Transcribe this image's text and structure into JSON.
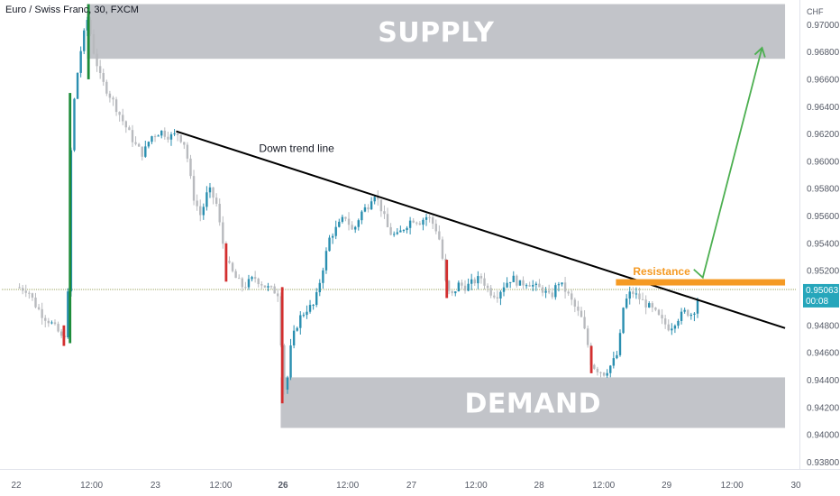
{
  "header": {
    "title": "Euro / Swiss Franc, 30, FXCM"
  },
  "axis": {
    "unit": "CHF"
  },
  "chart_data": {
    "type": "candlestick",
    "symbol": "Euro / Swiss Franc",
    "interval": "30",
    "source": "FXCM",
    "ylim": [
      0.9375,
      0.9718
    ],
    "xlim": [
      0,
      100
    ],
    "y_ticks": [
      "0.97000",
      "0.96800",
      "0.96600",
      "0.96400",
      "0.96200",
      "0.96000",
      "0.95800",
      "0.95600",
      "0.95400",
      "0.95200",
      "0.94800",
      "0.94600",
      "0.94400",
      "0.94200",
      "0.94000",
      "0.93800"
    ],
    "y_tick_values": [
      0.97,
      0.968,
      0.966,
      0.964,
      0.962,
      0.96,
      0.958,
      0.956,
      0.954,
      0.952,
      0.948,
      0.946,
      0.944,
      0.942,
      0.94,
      0.938
    ],
    "x_ticks": [
      {
        "label": "22",
        "pos": 0,
        "bold": false
      },
      {
        "label": "12:00",
        "pos": 9.8,
        "bold": false
      },
      {
        "label": "23",
        "pos": 18.1,
        "bold": false
      },
      {
        "label": "12:00",
        "pos": 26.6,
        "bold": false
      },
      {
        "label": "26",
        "pos": 34.7,
        "bold": true
      },
      {
        "label": "12:00",
        "pos": 43.1,
        "bold": false
      },
      {
        "label": "27",
        "pos": 51.4,
        "bold": false
      },
      {
        "label": "12:00",
        "pos": 59.8,
        "bold": false
      },
      {
        "label": "28",
        "pos": 68.0,
        "bold": false
      },
      {
        "label": "12:00",
        "pos": 76.4,
        "bold": false
      },
      {
        "label": "29",
        "pos": 84.6,
        "bold": false
      },
      {
        "label": "12:00",
        "pos": 93.1,
        "bold": false
      },
      {
        "label": "30",
        "pos": 101.4,
        "bold": false
      }
    ],
    "last_price": "0.95063",
    "countdown": "00:08",
    "last_price_value": 0.95063,
    "price_path": [
      [
        0,
        0.9508
      ],
      [
        1.5,
        0.9506
      ],
      [
        2.5,
        0.9495
      ],
      [
        3.5,
        0.9487
      ],
      [
        4.5,
        0.9482
      ],
      [
        5.5,
        0.9475
      ],
      [
        6.2,
        0.9467
      ],
      [
        6.8,
        0.9508
      ],
      [
        7.2,
        0.9625
      ],
      [
        7.8,
        0.9658
      ],
      [
        8.5,
        0.9685
      ],
      [
        9.3,
        0.9705
      ],
      [
        10.0,
        0.9682
      ],
      [
        11.0,
        0.966
      ],
      [
        12.5,
        0.9645
      ],
      [
        14.0,
        0.9628
      ],
      [
        15.5,
        0.9612
      ],
      [
        16.5,
        0.9605
      ],
      [
        17.5,
        0.9618
      ],
      [
        18.8,
        0.9622
      ],
      [
        20.0,
        0.9618
      ],
      [
        21.0,
        0.962
      ],
      [
        22.0,
        0.9612
      ],
      [
        23.0,
        0.9575
      ],
      [
        24.0,
        0.956
      ],
      [
        25.0,
        0.958
      ],
      [
        26.0,
        0.957
      ],
      [
        26.8,
        0.9542
      ],
      [
        27.5,
        0.9525
      ],
      [
        28.5,
        0.9515
      ],
      [
        29.5,
        0.9508
      ],
      [
        31.0,
        0.9515
      ],
      [
        32.5,
        0.9508
      ],
      [
        33.6,
        0.9505
      ],
      [
        34.2,
        0.9503
      ],
      [
        34.6,
        0.9445
      ],
      [
        35.0,
        0.9428
      ],
      [
        35.8,
        0.9468
      ],
      [
        36.8,
        0.9485
      ],
      [
        37.8,
        0.9492
      ],
      [
        38.8,
        0.9495
      ],
      [
        39.8,
        0.952
      ],
      [
        40.8,
        0.9545
      ],
      [
        41.8,
        0.9552
      ],
      [
        42.8,
        0.956
      ],
      [
        43.8,
        0.9548
      ],
      [
        44.8,
        0.9562
      ],
      [
        45.8,
        0.9568
      ],
      [
        46.5,
        0.9578
      ],
      [
        47.5,
        0.9565
      ],
      [
        48.5,
        0.9548
      ],
      [
        49.5,
        0.9545
      ],
      [
        50.5,
        0.9552
      ],
      [
        51.5,
        0.9558
      ],
      [
        52.5,
        0.9556
      ],
      [
        53.5,
        0.956
      ],
      [
        54.5,
        0.9552
      ],
      [
        55.2,
        0.954
      ],
      [
        55.8,
        0.9512
      ],
      [
        56.5,
        0.95
      ],
      [
        57.5,
        0.951
      ],
      [
        58.5,
        0.9508
      ],
      [
        59.5,
        0.9512
      ],
      [
        60.5,
        0.9515
      ],
      [
        61.5,
        0.9505
      ],
      [
        62.5,
        0.9502
      ],
      [
        63.5,
        0.951
      ],
      [
        64.5,
        0.9515
      ],
      [
        65.5,
        0.951
      ],
      [
        66.5,
        0.9512
      ],
      [
        67.5,
        0.9508
      ],
      [
        68.5,
        0.9506
      ],
      [
        69.5,
        0.95
      ],
      [
        70.5,
        0.9512
      ],
      [
        71.5,
        0.9505
      ],
      [
        72.5,
        0.9495
      ],
      [
        73.5,
        0.9485
      ],
      [
        74.2,
        0.947
      ],
      [
        74.8,
        0.9452
      ],
      [
        75.5,
        0.9448
      ],
      [
        76.5,
        0.9445
      ],
      [
        77.5,
        0.9452
      ],
      [
        78.3,
        0.946
      ],
      [
        79.0,
        0.9495
      ],
      [
        80.0,
        0.9505
      ],
      [
        81.0,
        0.95
      ],
      [
        82.0,
        0.9495
      ],
      [
        83.0,
        0.949
      ],
      [
        84.0,
        0.9483
      ],
      [
        85.0,
        0.9478
      ],
      [
        86.0,
        0.9485
      ],
      [
        87.0,
        0.949
      ],
      [
        88.0,
        0.9488
      ],
      [
        89.0,
        0.9506
      ]
    ],
    "spikes": [
      {
        "x": 6.2,
        "low": 0.9465,
        "high": 0.948,
        "color": "#d32f2f"
      },
      {
        "x": 7.0,
        "low": 0.9467,
        "high": 0.965,
        "color": "#1e8c3a"
      },
      {
        "x": 9.4,
        "low": 0.966,
        "high": 0.9715,
        "color": "#1e8c3a"
      },
      {
        "x": 34.6,
        "low": 0.9423,
        "high": 0.9508,
        "color": "#d32f2f"
      },
      {
        "x": 27.3,
        "low": 0.9512,
        "high": 0.954,
        "color": "#d32f2f"
      },
      {
        "x": 56.0,
        "low": 0.95,
        "high": 0.9528,
        "color": "#d32f2f"
      },
      {
        "x": 74.8,
        "low": 0.9445,
        "high": 0.9465,
        "color": "#d32f2f"
      }
    ],
    "zones": [
      {
        "name": "supply",
        "label": "SUPPLY",
        "x0": 9.2,
        "x1": 100,
        "y0": 0.9675,
        "y1": 0.9715,
        "color": "#c2c4c9"
      },
      {
        "name": "demand",
        "label": "DEMAND",
        "x0": 34.4,
        "x1": 100,
        "y0": 0.9405,
        "y1": 0.9442,
        "color": "#c2c4c9"
      }
    ],
    "trend_line": {
      "label": "Down trend line",
      "x0": 20.8,
      "y0": 0.9622,
      "x1": 100,
      "y1": 0.9478,
      "color": "#000000"
    },
    "resistance": {
      "label": "Resistance",
      "x0": 78.0,
      "x1": 100,
      "y": 0.95115,
      "color": "#f59a23"
    },
    "projection": [
      [
        89.3,
        0.9515
      ],
      [
        97.0,
        0.9683
      ]
    ],
    "projection_color": "#4caf50"
  }
}
